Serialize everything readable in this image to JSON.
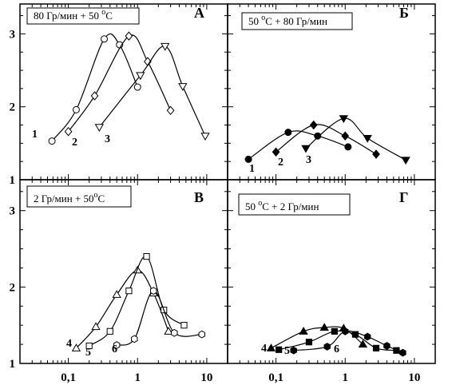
{
  "chart_data": [
    {
      "type": "line",
      "panel_letter": "А",
      "title": "80 Гр/мин + 50 °С",
      "title_parts": {
        "before": "80 Гр/мин + 50 ",
        "sup": "o",
        "after": "С"
      },
      "xscale": "log",
      "xlim": [
        0.02,
        20
      ],
      "ylim": [
        1,
        3.3
      ],
      "xticks": [
        "",
        "0,1",
        "1",
        "10"
      ],
      "yticks": [
        "1",
        "2",
        "3"
      ],
      "series": [
        {
          "label": "1",
          "marker": "circle",
          "filled": false,
          "x": [
            0.058,
            0.13,
            0.33,
            0.55,
            1.0
          ],
          "y": [
            1.53,
            1.96,
            2.93,
            2.85,
            2.27
          ]
        },
        {
          "label": "2",
          "marker": "diamond",
          "filled": false,
          "x": [
            0.1,
            0.24,
            0.75,
            1.4,
            3.0
          ],
          "y": [
            1.66,
            2.15,
            2.97,
            2.62,
            1.95
          ]
        },
        {
          "label": "3",
          "marker": "triangle-down",
          "filled": false,
          "x": [
            0.28,
            1.1,
            2.5,
            4.5,
            9.5
          ],
          "y": [
            1.72,
            2.43,
            2.83,
            2.28,
            1.6
          ]
        }
      ]
    },
    {
      "type": "line",
      "panel_letter": "Б",
      "title": "50 °С + 80 Гр/мин",
      "title_parts": {
        "before": "50 ",
        "sup": "o",
        "after": "С + 80 Гр/мин"
      },
      "xscale": "log",
      "xlim": [
        0.02,
        20
      ],
      "ylim": [
        1,
        3.3
      ],
      "xticks": [
        "",
        "0,1",
        "1",
        "10"
      ],
      "yticks": [
        "1",
        "2",
        "3"
      ],
      "series": [
        {
          "label": "1",
          "marker": "circle",
          "filled": true,
          "x": [
            0.04,
            0.15,
            0.4,
            1.1
          ],
          "y": [
            1.28,
            1.65,
            1.6,
            1.45
          ]
        },
        {
          "label": "2",
          "marker": "diamond",
          "filled": true,
          "x": [
            0.1,
            0.35,
            1.0,
            2.8
          ],
          "y": [
            1.38,
            1.75,
            1.6,
            1.35
          ]
        },
        {
          "label": "3",
          "marker": "triangle-down",
          "filled": true,
          "x": [
            0.27,
            0.95,
            2.1,
            7.5
          ],
          "y": [
            1.43,
            1.84,
            1.57,
            1.27
          ]
        }
      ]
    },
    {
      "type": "line",
      "panel_letter": "В",
      "title": "2 Гр/мин + 50°С",
      "title_parts": {
        "before": "2 Гр/мин + 50",
        "sup": "o",
        "after": "С"
      },
      "xscale": "log",
      "xlim": [
        0.02,
        20
      ],
      "ylim": [
        1,
        3.3
      ],
      "xticks": [
        "",
        "0,1",
        "1",
        "10"
      ],
      "yticks": [
        "1",
        "2",
        "3"
      ],
      "series": [
        {
          "label": "4",
          "marker": "triangle-up",
          "filled": false,
          "x": [
            0.13,
            0.25,
            0.5,
            1.0,
            1.7,
            2.8
          ],
          "y": [
            1.2,
            1.48,
            1.9,
            2.22,
            1.92,
            1.42
          ]
        },
        {
          "label": "5",
          "marker": "square",
          "filled": false,
          "x": [
            0.2,
            0.4,
            0.75,
            1.35,
            2.4,
            4.7
          ],
          "y": [
            1.23,
            1.42,
            1.95,
            2.4,
            1.7,
            1.5
          ]
        },
        {
          "label": "6",
          "marker": "hexagon",
          "filled": false,
          "x": [
            0.5,
            0.9,
            1.7,
            3.4,
            8.5
          ],
          "y": [
            1.24,
            1.32,
            1.95,
            1.4,
            1.38
          ]
        }
      ]
    },
    {
      "type": "line",
      "panel_letter": "Г",
      "title": "50 °С + 2 Гр/мин",
      "title_parts": {
        "before": "50 ",
        "sup": "o",
        "after": "С + 2 Гр/мин"
      },
      "xscale": "log",
      "xlim": [
        0.02,
        20
      ],
      "ylim": [
        1,
        3.3
      ],
      "xticks": [
        "",
        "0,1",
        "1",
        "10"
      ],
      "yticks": [
        "1",
        "2",
        "3"
      ],
      "series": [
        {
          "label": "4",
          "marker": "triangle-up",
          "filled": true,
          "x": [
            0.085,
            0.25,
            0.5,
            0.95,
            1.8
          ],
          "y": [
            1.2,
            1.42,
            1.47,
            1.46,
            1.25
          ]
        },
        {
          "label": "5",
          "marker": "square",
          "filled": true,
          "x": [
            0.11,
            0.3,
            0.7,
            1.4,
            2.8,
            5.5
          ],
          "y": [
            1.18,
            1.28,
            1.42,
            1.38,
            1.2,
            1.17
          ]
        },
        {
          "label": "6",
          "marker": "hexagon",
          "filled": true,
          "x": [
            0.18,
            0.55,
            1.0,
            2.1,
            4.0,
            6.8
          ],
          "y": [
            1.17,
            1.22,
            1.42,
            1.35,
            1.23,
            1.14
          ]
        }
      ]
    }
  ]
}
